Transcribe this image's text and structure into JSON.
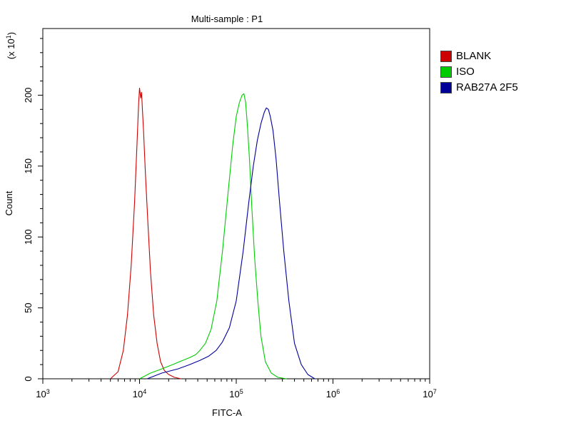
{
  "chart_data": {
    "type": "line",
    "title": "Multi-sample : P1",
    "xlabel": "FITC-A",
    "ylabel": "Count",
    "y_multiplier_label": "(x 10",
    "y_multiplier_exp": "1",
    "y_multiplier_close": ")",
    "x_scale": "log",
    "xlim": [
      1000,
      10000000
    ],
    "ylim": [
      0,
      247
    ],
    "x_ticks": [
      {
        "value": 1000,
        "base": "10",
        "exp": "3"
      },
      {
        "value": 10000,
        "base": "10",
        "exp": "4"
      },
      {
        "value": 100000,
        "base": "10",
        "exp": "5"
      },
      {
        "value": 1000000,
        "base": "10",
        "exp": "6"
      },
      {
        "value": 10000000,
        "base": "10",
        "exp": "7"
      }
    ],
    "y_ticks": [
      0,
      50,
      100,
      150,
      200
    ],
    "legend_position": "right",
    "series": [
      {
        "name": "BLANK",
        "color": "#cc0000",
        "x": [
          5000,
          6000,
          6800,
          7500,
          8200,
          8900,
          9400,
          9800,
          10000,
          10300,
          10500,
          10700,
          11000,
          11500,
          12200,
          13000,
          14000,
          15200,
          16500,
          18000,
          20000,
          23000,
          27000
        ],
        "y": [
          0,
          5,
          20,
          45,
          80,
          125,
          165,
          195,
          205,
          198,
          202,
          190,
          175,
          145,
          110,
          75,
          45,
          25,
          12,
          6,
          3,
          1,
          0
        ]
      },
      {
        "name": "ISO",
        "color": "#00cc00",
        "x": [
          10000,
          13000,
          17000,
          22000,
          28000,
          33000,
          38000,
          42000,
          48000,
          55000,
          63000,
          72000,
          82000,
          92000,
          100000,
          108000,
          115000,
          120000,
          125000,
          130000,
          137000,
          145000,
          155000,
          167000,
          180000,
          200000,
          230000,
          270000,
          330000
        ],
        "y": [
          0,
          4,
          7,
          10,
          13,
          15,
          17,
          20,
          25,
          35,
          55,
          90,
          130,
          165,
          185,
          195,
          200,
          201,
          195,
          180,
          155,
          120,
          85,
          55,
          30,
          12,
          4,
          1,
          0
        ]
      },
      {
        "name": "RAB27A 2F5",
        "color": "#000099",
        "x": [
          12000,
          17000,
          25000,
          33000,
          42000,
          52000,
          62000,
          72000,
          85000,
          100000,
          118000,
          135000,
          150000,
          165000,
          180000,
          195000,
          205000,
          215000,
          225000,
          240000,
          258000,
          280000,
          310000,
          350000,
          400000,
          470000,
          550000,
          650000
        ],
        "y": [
          0,
          4,
          7,
          10,
          13,
          16,
          20,
          26,
          36,
          55,
          90,
          125,
          150,
          168,
          180,
          188,
          191,
          190,
          185,
          175,
          155,
          125,
          90,
          55,
          25,
          10,
          3,
          0
        ]
      }
    ],
    "grid": false
  }
}
